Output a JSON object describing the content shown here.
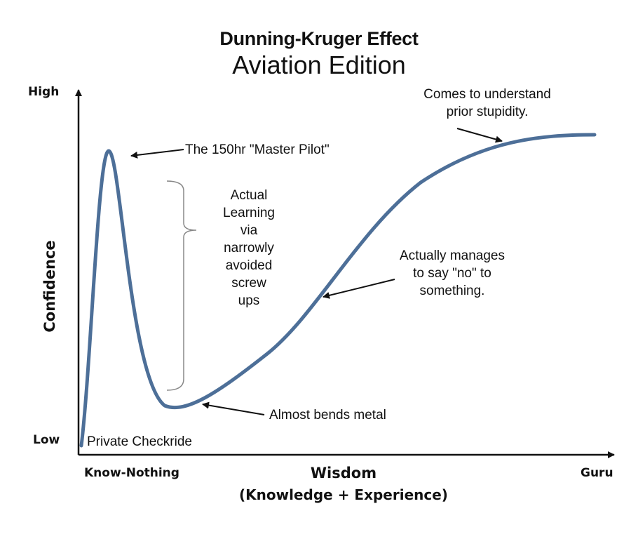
{
  "title": "Dunning-Kruger Effect",
  "subtitle": "Aviation Edition",
  "axes": {
    "y_label": "Confidence",
    "y_high": "High",
    "y_low": "Low",
    "x_label": "Wisdom",
    "x_sublabel": "(Knowledge + Experience)",
    "x_left": "Know-Nothing",
    "x_right": "Guru"
  },
  "annotations": {
    "start": "Private Checkride",
    "peak": "The 150hr \"Master Pilot\"",
    "bracket_lines": [
      "Actual",
      "Learning",
      "via",
      "narrowly",
      "avoided",
      "screw",
      "ups"
    ],
    "valley": "Almost bends metal",
    "slope_lines": [
      "Actually manages",
      "to say \"no\" to",
      "something."
    ],
    "plateau_lines": [
      "Comes to understand",
      "prior stupidity."
    ]
  },
  "colors": {
    "curve": "#4d6f98",
    "ink": "#111111",
    "bracket": "#888888"
  }
}
